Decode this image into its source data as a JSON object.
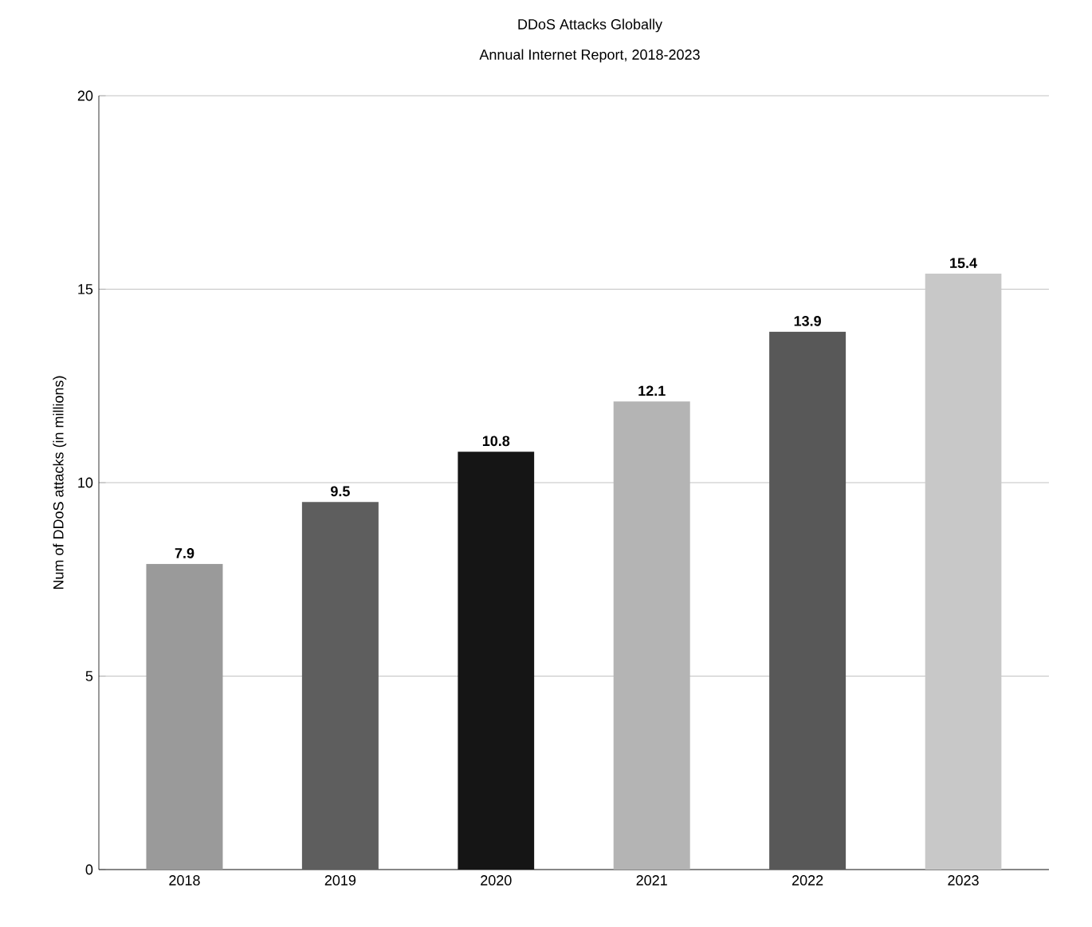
{
  "chart_data": {
    "type": "bar",
    "title": "DDoS Attacks Globally",
    "subtitle": "Annual Internet Report, 2018-2023",
    "ylabel": "Num of DDoS attacks (in millions)",
    "categories": [
      "2018",
      "2019",
      "2020",
      "2021",
      "2022",
      "2023"
    ],
    "values": [
      7.9,
      9.5,
      10.8,
      12.1,
      13.9,
      15.4
    ],
    "colors": [
      "#9a9a9a",
      "#5e5e5e",
      "#151515",
      "#b4b4b4",
      "#585858",
      "#c8c8c8"
    ],
    "ylim": [
      0,
      20
    ],
    "yticks": [
      0,
      5,
      10,
      15,
      20
    ],
    "grid": "y",
    "data_labels": true
  }
}
